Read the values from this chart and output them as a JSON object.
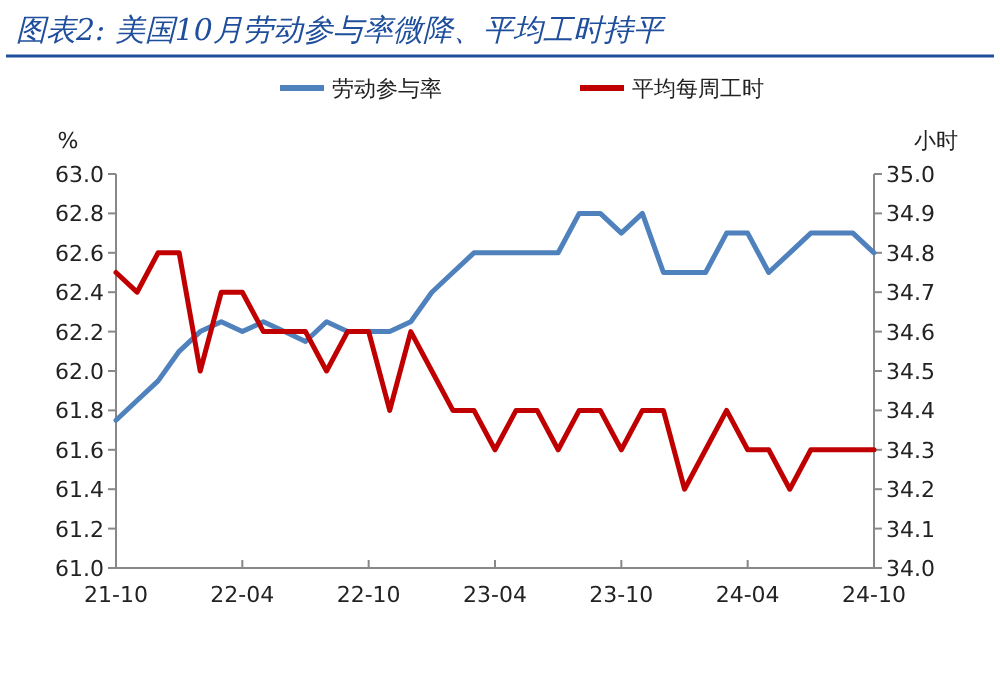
{
  "chart_data": {
    "type": "line",
    "title": "图表2:  美国10月劳动参与率微降、平均工时持平",
    "categories": [
      "21-10",
      null,
      null,
      null,
      null,
      null,
      "22-04",
      null,
      null,
      null,
      null,
      null,
      "22-10",
      null,
      null,
      null,
      null,
      null,
      "23-04",
      null,
      null,
      null,
      null,
      null,
      "23-10",
      null,
      null,
      null,
      null,
      null,
      "24-04",
      null,
      null,
      null,
      null,
      null,
      "24-10"
    ],
    "series": [
      {
        "name": "劳动参与率",
        "color": "#4f81bd",
        "values": [
          61.75,
          61.85,
          61.95,
          62.1,
          62.2,
          62.25,
          62.2,
          62.25,
          62.2,
          62.15,
          62.25,
          62.2,
          62.2,
          62.2,
          62.25,
          62.4,
          62.5,
          62.6,
          62.6,
          62.6,
          62.6,
          62.6,
          62.8,
          62.8,
          62.7,
          62.8,
          62.5,
          62.5,
          62.5,
          62.7,
          62.7,
          62.5,
          62.6,
          62.7,
          62.7,
          62.7,
          62.6
        ]
      },
      {
        "name": "平均每周工时",
        "color": "#c00000",
        "axis": "y2",
        "values": [
          34.75,
          34.7,
          34.8,
          34.8,
          34.5,
          34.7,
          34.7,
          34.6,
          34.6,
          34.6,
          34.5,
          34.6,
          34.6,
          34.4,
          34.6,
          34.5,
          34.4,
          34.4,
          34.3,
          34.4,
          34.4,
          34.3,
          34.4,
          34.4,
          34.3,
          34.4,
          34.4,
          34.2,
          34.3,
          34.4,
          34.3,
          34.3,
          34.2,
          34.3,
          34.3,
          34.3,
          34.3
        ]
      }
    ],
    "ylabel": "%",
    "y2label": "小时",
    "ylim": [
      61,
      63
    ],
    "yticks": [
      {
        "value": 61,
        "label": "61.0"
      },
      61.2,
      61.4,
      61.6,
      61.8,
      {
        "value": 62,
        "label": "62.0"
      },
      62.2,
      62.4,
      62.6,
      62.8,
      {
        "value": 63,
        "label": "63.0"
      }
    ],
    "y2lim": [
      34,
      35
    ],
    "y2ticks": [
      {
        "value": 34,
        "label": "34.0"
      },
      34.1,
      34.2,
      34.3,
      34.4,
      34.5,
      34.6,
      34.7,
      34.8,
      34.9,
      {
        "value": 35,
        "label": "35.0"
      }
    ],
    "legend": "top",
    "line_style": "solid",
    "marker": "none"
  }
}
